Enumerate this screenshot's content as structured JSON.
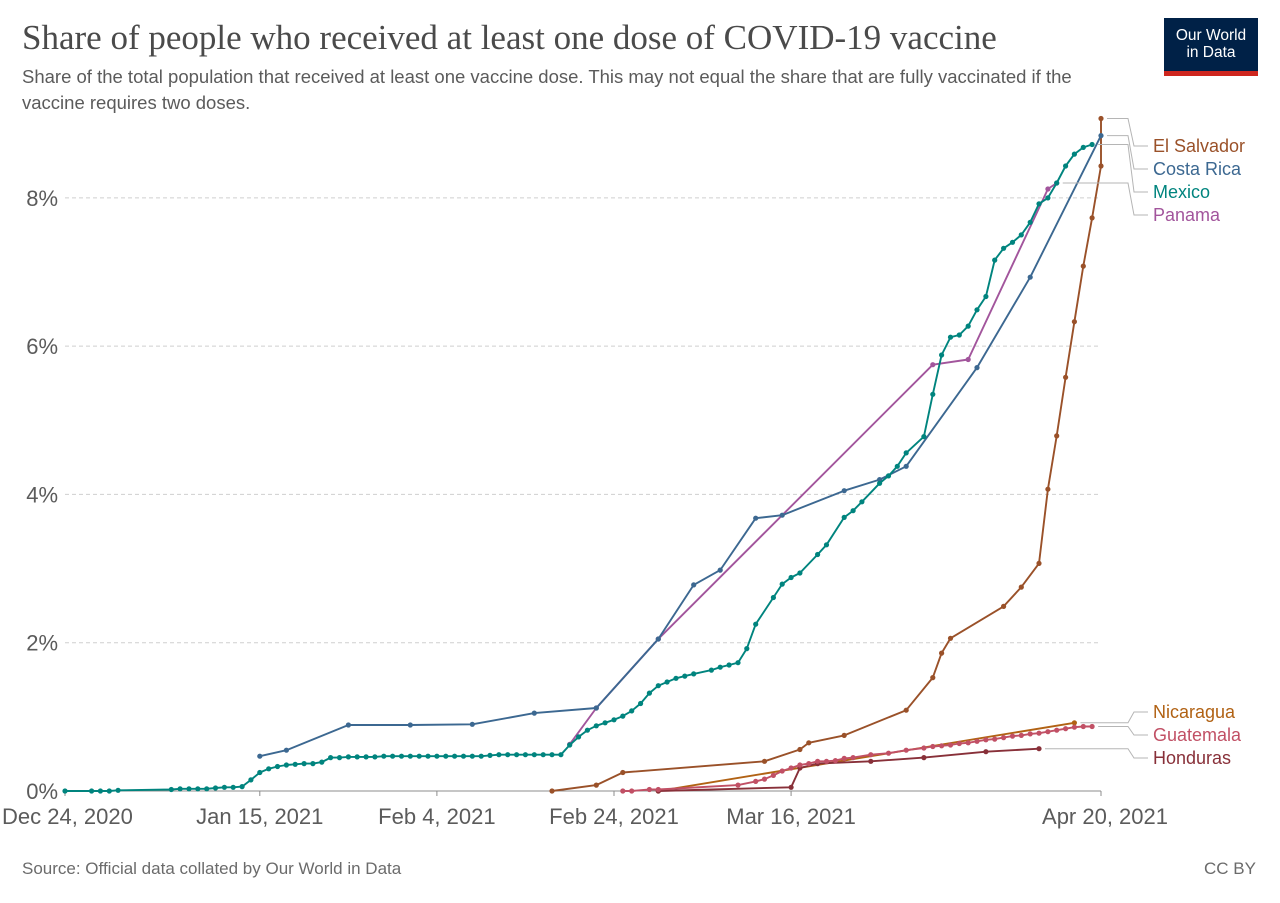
{
  "header": {
    "title": "Share of people who received at least one dose of COVID-19 vaccine",
    "subtitle": "Share of the total population that received at least one vaccine dose. This may not equal the share that are fully vaccinated if the vaccine requires two doses."
  },
  "logo": {
    "line1": "Our World",
    "line2": "in Data",
    "bg_color": "#002147",
    "accent_color": "#ce261e"
  },
  "footer": {
    "source": "Source: Official data collated by Our World in Data",
    "license": "CC BY"
  },
  "chart_data": {
    "type": "line",
    "x_type": "date",
    "x_range": [
      "2020-12-24",
      "2021-04-20"
    ],
    "x_ticks": [
      {
        "date": "2020-12-24",
        "label": "Dec 24, 2020"
      },
      {
        "date": "2021-01-15",
        "label": "Jan 15, 2021"
      },
      {
        "date": "2021-02-04",
        "label": "Feb 4, 2021"
      },
      {
        "date": "2021-02-24",
        "label": "Feb 24, 2021"
      },
      {
        "date": "2021-03-16",
        "label": "Mar 16, 2021"
      },
      {
        "date": "2021-04-20",
        "label": "Apr 20, 2021"
      }
    ],
    "y_range": [
      0,
      9.05
    ],
    "y_ticks": [
      {
        "value": 0,
        "label": "0%"
      },
      {
        "value": 2,
        "label": "2%"
      },
      {
        "value": 4,
        "label": "4%"
      },
      {
        "value": 6,
        "label": "6%"
      },
      {
        "value": 8,
        "label": "8%"
      }
    ],
    "grid": "horizontal dashed",
    "legend_position": "right, labels at line ends",
    "series": [
      {
        "name": "Mexico",
        "color": "#00847e",
        "points": [
          [
            "2020-12-24",
            0
          ],
          [
            "2020-12-27",
            0
          ],
          [
            "2020-12-28",
            0
          ],
          [
            "2020-12-29",
            0
          ],
          [
            "2020-12-30",
            0.01
          ],
          [
            "2021-01-05",
            0.02
          ],
          [
            "2021-01-06",
            0.03
          ],
          [
            "2021-01-07",
            0.03
          ],
          [
            "2021-01-08",
            0.03
          ],
          [
            "2021-01-09",
            0.03
          ],
          [
            "2021-01-10",
            0.04
          ],
          [
            "2021-01-11",
            0.05
          ],
          [
            "2021-01-12",
            0.05
          ],
          [
            "2021-01-13",
            0.06
          ],
          [
            "2021-01-14",
            0.15
          ],
          [
            "2021-01-15",
            0.25
          ],
          [
            "2021-01-16",
            0.3
          ],
          [
            "2021-01-17",
            0.33
          ],
          [
            "2021-01-18",
            0.35
          ],
          [
            "2021-01-19",
            0.36
          ],
          [
            "2021-01-20",
            0.37
          ],
          [
            "2021-01-21",
            0.37
          ],
          [
            "2021-01-22",
            0.39
          ],
          [
            "2021-01-23",
            0.45
          ],
          [
            "2021-01-24",
            0.45
          ],
          [
            "2021-01-25",
            0.46
          ],
          [
            "2021-01-26",
            0.46
          ],
          [
            "2021-01-27",
            0.46
          ],
          [
            "2021-01-28",
            0.46
          ],
          [
            "2021-01-29",
            0.47
          ],
          [
            "2021-01-30",
            0.47
          ],
          [
            "2021-01-31",
            0.47
          ],
          [
            "2021-02-01",
            0.47
          ],
          [
            "2021-02-02",
            0.47
          ],
          [
            "2021-02-03",
            0.47
          ],
          [
            "2021-02-04",
            0.47
          ],
          [
            "2021-02-05",
            0.47
          ],
          [
            "2021-02-06",
            0.47
          ],
          [
            "2021-02-07",
            0.47
          ],
          [
            "2021-02-08",
            0.47
          ],
          [
            "2021-02-09",
            0.47
          ],
          [
            "2021-02-10",
            0.48
          ],
          [
            "2021-02-11",
            0.49
          ],
          [
            "2021-02-12",
            0.49
          ],
          [
            "2021-02-13",
            0.49
          ],
          [
            "2021-02-14",
            0.49
          ],
          [
            "2021-02-15",
            0.49
          ],
          [
            "2021-02-16",
            0.49
          ],
          [
            "2021-02-17",
            0.49
          ],
          [
            "2021-02-18",
            0.49
          ],
          [
            "2021-02-19",
            0.62
          ],
          [
            "2021-02-20",
            0.73
          ],
          [
            "2021-02-21",
            0.82
          ],
          [
            "2021-02-22",
            0.88
          ],
          [
            "2021-02-23",
            0.92
          ],
          [
            "2021-02-24",
            0.96
          ],
          [
            "2021-02-25",
            1.01
          ],
          [
            "2021-02-26",
            1.08
          ],
          [
            "2021-02-27",
            1.18
          ],
          [
            "2021-02-28",
            1.32
          ],
          [
            "2021-03-01",
            1.42
          ],
          [
            "2021-03-02",
            1.47
          ],
          [
            "2021-03-03",
            1.52
          ],
          [
            "2021-03-04",
            1.55
          ],
          [
            "2021-03-05",
            1.58
          ],
          [
            "2021-03-07",
            1.63
          ],
          [
            "2021-03-08",
            1.67
          ],
          [
            "2021-03-09",
            1.7
          ],
          [
            "2021-03-10",
            1.73
          ],
          [
            "2021-03-11",
            1.92
          ],
          [
            "2021-03-12",
            2.25
          ],
          [
            "2021-03-14",
            2.61
          ],
          [
            "2021-03-15",
            2.79
          ],
          [
            "2021-03-16",
            2.88
          ],
          [
            "2021-03-17",
            2.94
          ],
          [
            "2021-03-19",
            3.19
          ],
          [
            "2021-03-20",
            3.32
          ],
          [
            "2021-03-22",
            3.69
          ],
          [
            "2021-03-23",
            3.78
          ],
          [
            "2021-03-24",
            3.9
          ],
          [
            "2021-03-26",
            4.15
          ],
          [
            "2021-03-27",
            4.25
          ],
          [
            "2021-03-28",
            4.38
          ],
          [
            "2021-03-29",
            4.56
          ],
          [
            "2021-03-31",
            4.78
          ],
          [
            "2021-04-01",
            5.35
          ],
          [
            "2021-04-02",
            5.88
          ],
          [
            "2021-04-03",
            6.12
          ],
          [
            "2021-04-04",
            6.15
          ],
          [
            "2021-04-05",
            6.27
          ],
          [
            "2021-04-06",
            6.49
          ],
          [
            "2021-04-07",
            6.67
          ],
          [
            "2021-04-08",
            7.16
          ],
          [
            "2021-04-09",
            7.32
          ],
          [
            "2021-04-10",
            7.4
          ],
          [
            "2021-04-11",
            7.5
          ],
          [
            "2021-04-12",
            7.67
          ],
          [
            "2021-04-13",
            7.92
          ],
          [
            "2021-04-14",
            8.0
          ],
          [
            "2021-04-15",
            8.2
          ],
          [
            "2021-04-16",
            8.43
          ],
          [
            "2021-04-17",
            8.59
          ],
          [
            "2021-04-18",
            8.68
          ],
          [
            "2021-04-19",
            8.72
          ]
        ]
      },
      {
        "name": "Costa Rica",
        "color": "#3c6891",
        "points": [
          [
            "2021-01-15",
            0.47
          ],
          [
            "2021-01-18",
            0.55
          ],
          [
            "2021-01-25",
            0.89
          ],
          [
            "2021-02-01",
            0.89
          ],
          [
            "2021-02-08",
            0.9
          ],
          [
            "2021-02-15",
            1.05
          ],
          [
            "2021-02-22",
            1.12
          ],
          [
            "2021-03-01",
            2.05
          ],
          [
            "2021-03-05",
            2.78
          ],
          [
            "2021-03-08",
            2.98
          ],
          [
            "2021-03-12",
            3.68
          ],
          [
            "2021-03-15",
            3.72
          ],
          [
            "2021-03-22",
            4.05
          ],
          [
            "2021-03-26",
            4.2
          ],
          [
            "2021-03-29",
            4.38
          ],
          [
            "2021-04-06",
            5.71
          ],
          [
            "2021-04-12",
            6.93
          ],
          [
            "2021-04-20",
            8.84
          ]
        ]
      },
      {
        "name": "Panama",
        "color": "#a2559c",
        "points": [
          [
            "2021-02-19",
            0.63
          ],
          [
            "2021-02-22",
            1.12
          ],
          [
            "2021-03-01",
            2.05
          ],
          [
            "2021-04-01",
            5.75
          ],
          [
            "2021-04-05",
            5.82
          ],
          [
            "2021-04-14",
            8.12
          ],
          [
            "2021-04-15",
            8.2
          ]
        ]
      },
      {
        "name": "El Salvador",
        "color": "#9a5129",
        "points": [
          [
            "2021-02-17",
            0
          ],
          [
            "2021-02-22",
            0.08
          ],
          [
            "2021-02-25",
            0.25
          ],
          [
            "2021-03-13",
            0.4
          ],
          [
            "2021-03-17",
            0.56
          ],
          [
            "2021-03-18",
            0.65
          ],
          [
            "2021-03-22",
            0.75
          ],
          [
            "2021-03-29",
            1.09
          ],
          [
            "2021-04-01",
            1.53
          ],
          [
            "2021-04-02",
            1.86
          ],
          [
            "2021-04-03",
            2.06
          ],
          [
            "2021-04-09",
            2.49
          ],
          [
            "2021-04-11",
            2.75
          ],
          [
            "2021-04-13",
            3.07
          ],
          [
            "2021-04-14",
            4.07
          ],
          [
            "2021-04-15",
            4.79
          ],
          [
            "2021-04-16",
            5.58
          ],
          [
            "2021-04-17",
            6.33
          ],
          [
            "2021-04-18",
            7.08
          ],
          [
            "2021-04-19",
            7.73
          ],
          [
            "2021-04-20",
            8.43
          ],
          [
            "2021-04-20",
            9.07
          ]
        ]
      },
      {
        "name": "Nicaragua",
        "color": "#b16214",
        "points": [
          [
            "2021-03-01",
            0
          ],
          [
            "2021-04-17",
            0.92
          ]
        ]
      },
      {
        "name": "Guatemala",
        "color": "#c15065",
        "points": [
          [
            "2021-02-25",
            0
          ],
          [
            "2021-02-26",
            0
          ],
          [
            "2021-02-28",
            0.02
          ],
          [
            "2021-03-01",
            0.02
          ],
          [
            "2021-03-10",
            0.08
          ],
          [
            "2021-03-12",
            0.13
          ],
          [
            "2021-03-13",
            0.16
          ],
          [
            "2021-03-14",
            0.21
          ],
          [
            "2021-03-15",
            0.27
          ],
          [
            "2021-03-16",
            0.31
          ],
          [
            "2021-03-17",
            0.35
          ],
          [
            "2021-03-18",
            0.37
          ],
          [
            "2021-03-19",
            0.4
          ],
          [
            "2021-03-20",
            0.4
          ],
          [
            "2021-03-21",
            0.41
          ],
          [
            "2021-03-22",
            0.44
          ],
          [
            "2021-03-23",
            0.45
          ],
          [
            "2021-03-25",
            0.49
          ],
          [
            "2021-03-27",
            0.51
          ],
          [
            "2021-03-29",
            0.55
          ],
          [
            "2021-03-31",
            0.58
          ],
          [
            "2021-04-01",
            0.6
          ],
          [
            "2021-04-02",
            0.61
          ],
          [
            "2021-04-03",
            0.62
          ],
          [
            "2021-04-04",
            0.64
          ],
          [
            "2021-04-05",
            0.65
          ],
          [
            "2021-04-06",
            0.67
          ],
          [
            "2021-04-07",
            0.69
          ],
          [
            "2021-04-08",
            0.7
          ],
          [
            "2021-04-09",
            0.72
          ],
          [
            "2021-04-10",
            0.74
          ],
          [
            "2021-04-11",
            0.75
          ],
          [
            "2021-04-12",
            0.77
          ],
          [
            "2021-04-13",
            0.78
          ],
          [
            "2021-04-14",
            0.8
          ],
          [
            "2021-04-15",
            0.82
          ],
          [
            "2021-04-16",
            0.84
          ],
          [
            "2021-04-17",
            0.86
          ],
          [
            "2021-04-18",
            0.87
          ],
          [
            "2021-04-19",
            0.87
          ]
        ]
      },
      {
        "name": "Honduras",
        "color": "#883039",
        "points": [
          [
            "2021-03-01",
            0
          ],
          [
            "2021-03-16",
            0.05
          ],
          [
            "2021-03-17",
            0.31
          ],
          [
            "2021-03-19",
            0.37
          ],
          [
            "2021-03-25",
            0.4
          ],
          [
            "2021-03-31",
            0.45
          ],
          [
            "2021-04-07",
            0.53
          ],
          [
            "2021-04-13",
            0.57
          ]
        ]
      }
    ],
    "legend_order": [
      "El Salvador",
      "Costa Rica",
      "Mexico",
      "Panama",
      "Nicaragua",
      "Guatemala",
      "Honduras"
    ]
  }
}
